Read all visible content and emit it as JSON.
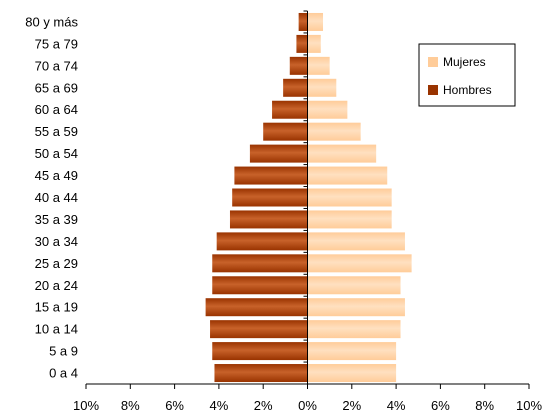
{
  "chart_data": {
    "type": "bar",
    "orientation": "horizontal",
    "categories": [
      "0 a 4",
      "5 a 9",
      "10 a 14",
      "15 a 19",
      "20 a 24",
      "25 a 29",
      "30 a 34",
      "35 a 39",
      "40 a 44",
      "45 a 49",
      "50 a 54",
      "55 a 59",
      "60 a 64",
      "65 a 69",
      "70 a 74",
      "75 a 79",
      "80 y más"
    ],
    "series": [
      {
        "name": "Mujeres",
        "values": [
          4.0,
          4.0,
          4.2,
          4.4,
          4.2,
          4.7,
          4.4,
          3.8,
          3.8,
          3.6,
          3.1,
          2.4,
          1.8,
          1.3,
          1.0,
          0.6,
          0.7
        ],
        "color": "#FFCC99"
      },
      {
        "name": "Hombres",
        "values": [
          4.2,
          4.3,
          4.4,
          4.6,
          4.3,
          4.3,
          4.1,
          3.5,
          3.4,
          3.3,
          2.6,
          2.0,
          1.6,
          1.1,
          0.8,
          0.5,
          0.4
        ],
        "color": "#993300"
      }
    ],
    "xlim": [
      -10,
      10
    ],
    "xticks": [
      "10%",
      "8%",
      "6%",
      "4%",
      "2%",
      "0%",
      "2%",
      "4%",
      "6%",
      "8%",
      "10%"
    ],
    "legend_position": "top-right",
    "grid": false,
    "title": "",
    "xlabel": "",
    "ylabel": ""
  }
}
